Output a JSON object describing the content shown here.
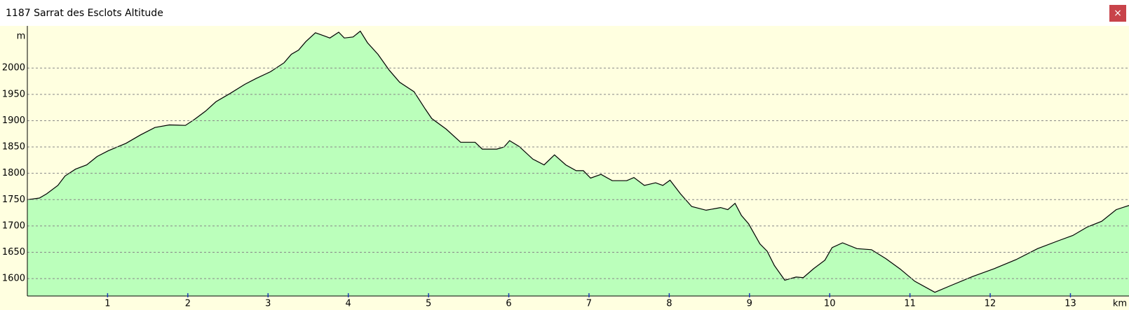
{
  "window": {
    "title": "1187 Sarrat des Esclots Altitude",
    "close": "×"
  },
  "chart_data": {
    "type": "area",
    "y_unit": "m",
    "x_unit": "km",
    "x": [
      0,
      0.15,
      0.24,
      0.38,
      0.47,
      0.6,
      0.74,
      0.87,
      1.01,
      1.23,
      1.41,
      1.59,
      1.77,
      1.97,
      2.08,
      2.22,
      2.35,
      2.53,
      2.71,
      2.85,
      3.03,
      3.2,
      3.29,
      3.38,
      3.47,
      3.59,
      3.7,
      3.77,
      3.88,
      3.95,
      4.06,
      4.15,
      4.24,
      4.37,
      4.51,
      4.64,
      4.82,
      4.96,
      5.04,
      5.22,
      5.4,
      5.58,
      5.67,
      5.85,
      5.94,
      6.01,
      6.13,
      6.3,
      6.44,
      6.57,
      6.71,
      6.84,
      6.93,
      7.02,
      7.15,
      7.29,
      7.47,
      7.56,
      7.69,
      7.83,
      7.92,
      8.01,
      8.14,
      8.28,
      8.46,
      8.64,
      8.73,
      8.82,
      8.9,
      8.99,
      9.13,
      9.22,
      9.31,
      9.44,
      9.58,
      9.67,
      9.8,
      9.94,
      10.03,
      10.16,
      10.34,
      10.52,
      10.7,
      10.88,
      11.06,
      11.31,
      11.51,
      11.78,
      12.05,
      12.32,
      12.59,
      12.85,
      13.03,
      13.21,
      13.39,
      13.57,
      13.73
    ],
    "values": [
      1750,
      1753,
      1761,
      1777,
      1795,
      1808,
      1816,
      1832,
      1843,
      1857,
      1873,
      1887,
      1892,
      1891,
      1902,
      1918,
      1936,
      1952,
      1969,
      1980,
      1993,
      2010,
      2026,
      2034,
      2050,
      2067,
      2061,
      2057,
      2068,
      2057,
      2059,
      2070,
      2048,
      2026,
      1996,
      1973,
      1955,
      1922,
      1904,
      1884,
      1859,
      1859,
      1846,
      1846,
      1850,
      1862,
      1851,
      1827,
      1816,
      1835,
      1816,
      1805,
      1805,
      1791,
      1798,
      1786,
      1786,
      1792,
      1777,
      1782,
      1777,
      1787,
      1761,
      1737,
      1730,
      1735,
      1731,
      1743,
      1720,
      1704,
      1666,
      1652,
      1625,
      1597,
      1603,
      1602,
      1619,
      1635,
      1659,
      1668,
      1657,
      1655,
      1638,
      1618,
      1595,
      1574,
      1587,
      1604,
      1619,
      1636,
      1657,
      1672,
      1682,
      1698,
      1709,
      1731,
      1739
    ],
    "color": "#bbffbb",
    "line_color": "#000000",
    "xlim": [
      0,
      13.73
    ],
    "ylim": [
      1567,
      2080
    ],
    "xticks": [
      1,
      2,
      3,
      4,
      5,
      6,
      7,
      8,
      9,
      10,
      11,
      12,
      13
    ],
    "yticks": [
      1600,
      1650,
      1700,
      1750,
      1800,
      1850,
      1900,
      1950,
      2000
    ],
    "grid": true
  }
}
